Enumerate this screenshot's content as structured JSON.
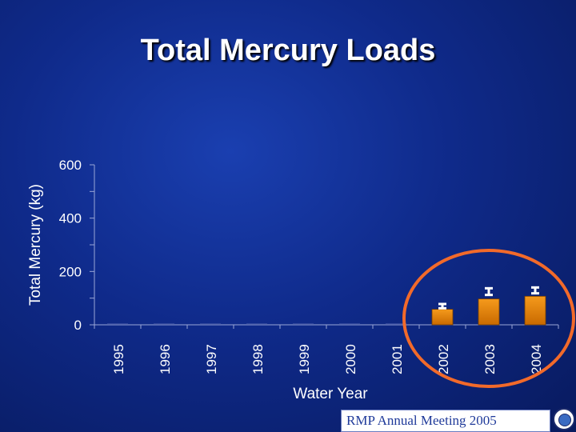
{
  "title": "Total Mercury Loads",
  "footer": "RMP Annual Meeting 2005",
  "colors": {
    "bar": "#f59a1c",
    "bar_dark": "#c96a00",
    "error_bar": "#ffffff",
    "highlight": "#f26a2a",
    "axis": "#9aa6d6"
  },
  "chart_data": {
    "type": "bar",
    "categories": [
      "1995",
      "1996",
      "1997",
      "1998",
      "1999",
      "2000",
      "2001",
      "2002",
      "2003",
      "2004"
    ],
    "values": [
      0,
      0,
      0,
      0,
      0,
      0,
      0,
      58,
      97,
      107
    ],
    "error_bars": [
      null,
      null,
      null,
      null,
      null,
      null,
      null,
      [
        62,
        78
      ],
      [
        112,
        137
      ],
      [
        118,
        140
      ]
    ],
    "xlabel": "Water Year",
    "ylabel": "Total Mercury (kg)",
    "ylim": [
      0,
      600
    ],
    "yticks": [
      0,
      200,
      400,
      600
    ],
    "grid": false,
    "legend": "none",
    "annotation": "circle around 2002-2004"
  }
}
